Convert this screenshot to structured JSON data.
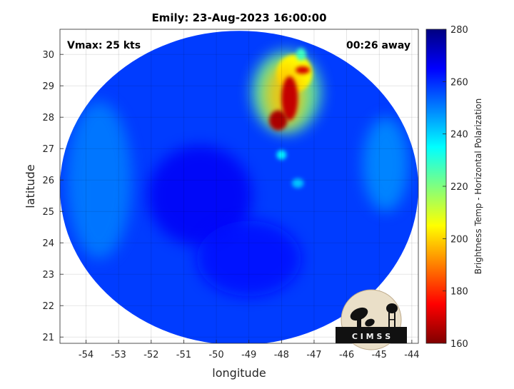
{
  "chart_data": {
    "type": "heatmap",
    "title": "Emily: 23-Aug-2023 16:00:00",
    "xlabel": "longitude",
    "ylabel": "latitude",
    "xlim": [
      -54.8,
      -43.8
    ],
    "ylim": [
      20.8,
      30.8
    ],
    "xticks": [
      -54,
      -53,
      -52,
      -51,
      -50,
      -49,
      -48,
      -47,
      -46,
      -45,
      -44
    ],
    "yticks": [
      21,
      22,
      23,
      24,
      25,
      26,
      27,
      28,
      29,
      30
    ],
    "grid": true,
    "annotations": {
      "vmax": "Vmax: 25 kts",
      "away": "00:26 away"
    },
    "colorbar": {
      "label": "Brightness Temp - Horizontal Polarization",
      "min": 160,
      "max": 280,
      "ticks": [
        160,
        180,
        200,
        220,
        240,
        260,
        280
      ],
      "colormap": "jet"
    },
    "swath": {
      "center_lon": -49.3,
      "center_lat": 25.75,
      "radius_lon": 5.5,
      "radius_lat": 5.0,
      "background_temp": 258
    },
    "features": [
      {
        "lon": -47.85,
        "lat": 28.8,
        "rlon": 1.05,
        "rlat": 1.3,
        "temp": 222
      },
      {
        "lon": -47.6,
        "lat": 29.4,
        "rlon": 0.55,
        "rlat": 0.6,
        "temp": 205
      },
      {
        "lon": -47.9,
        "lat": 28.7,
        "rlon": 0.6,
        "rlat": 1.0,
        "temp": 198
      },
      {
        "lon": -47.75,
        "lat": 28.6,
        "rlon": 0.25,
        "rlat": 0.7,
        "temp": 168
      },
      {
        "lon": -48.1,
        "lat": 27.9,
        "rlon": 0.28,
        "rlat": 0.32,
        "temp": 165
      },
      {
        "lon": -47.35,
        "lat": 29.5,
        "rlon": 0.22,
        "rlat": 0.12,
        "temp": 170
      },
      {
        "lon": -47.4,
        "lat": 30.0,
        "rlon": 0.15,
        "rlat": 0.2,
        "temp": 228
      },
      {
        "lon": -48.0,
        "lat": 26.8,
        "rlon": 0.15,
        "rlat": 0.15,
        "temp": 236
      },
      {
        "lon": -47.5,
        "lat": 25.9,
        "rlon": 0.18,
        "rlat": 0.15,
        "temp": 242
      },
      {
        "lon": -50.5,
        "lat": 25.5,
        "rlon": 1.6,
        "rlat": 1.6,
        "temp": 266
      },
      {
        "lon": -49.0,
        "lat": 23.5,
        "rlon": 1.6,
        "rlat": 1.2,
        "temp": 264
      },
      {
        "lon": -53.6,
        "lat": 26.0,
        "rlon": 1.0,
        "rlat": 2.5,
        "temp": 250
      },
      {
        "lon": -44.8,
        "lat": 26.5,
        "rlon": 0.7,
        "rlat": 1.5,
        "temp": 248
      }
    ]
  },
  "logo": {
    "text": "CIMSS",
    "caption": "C I M S S"
  }
}
